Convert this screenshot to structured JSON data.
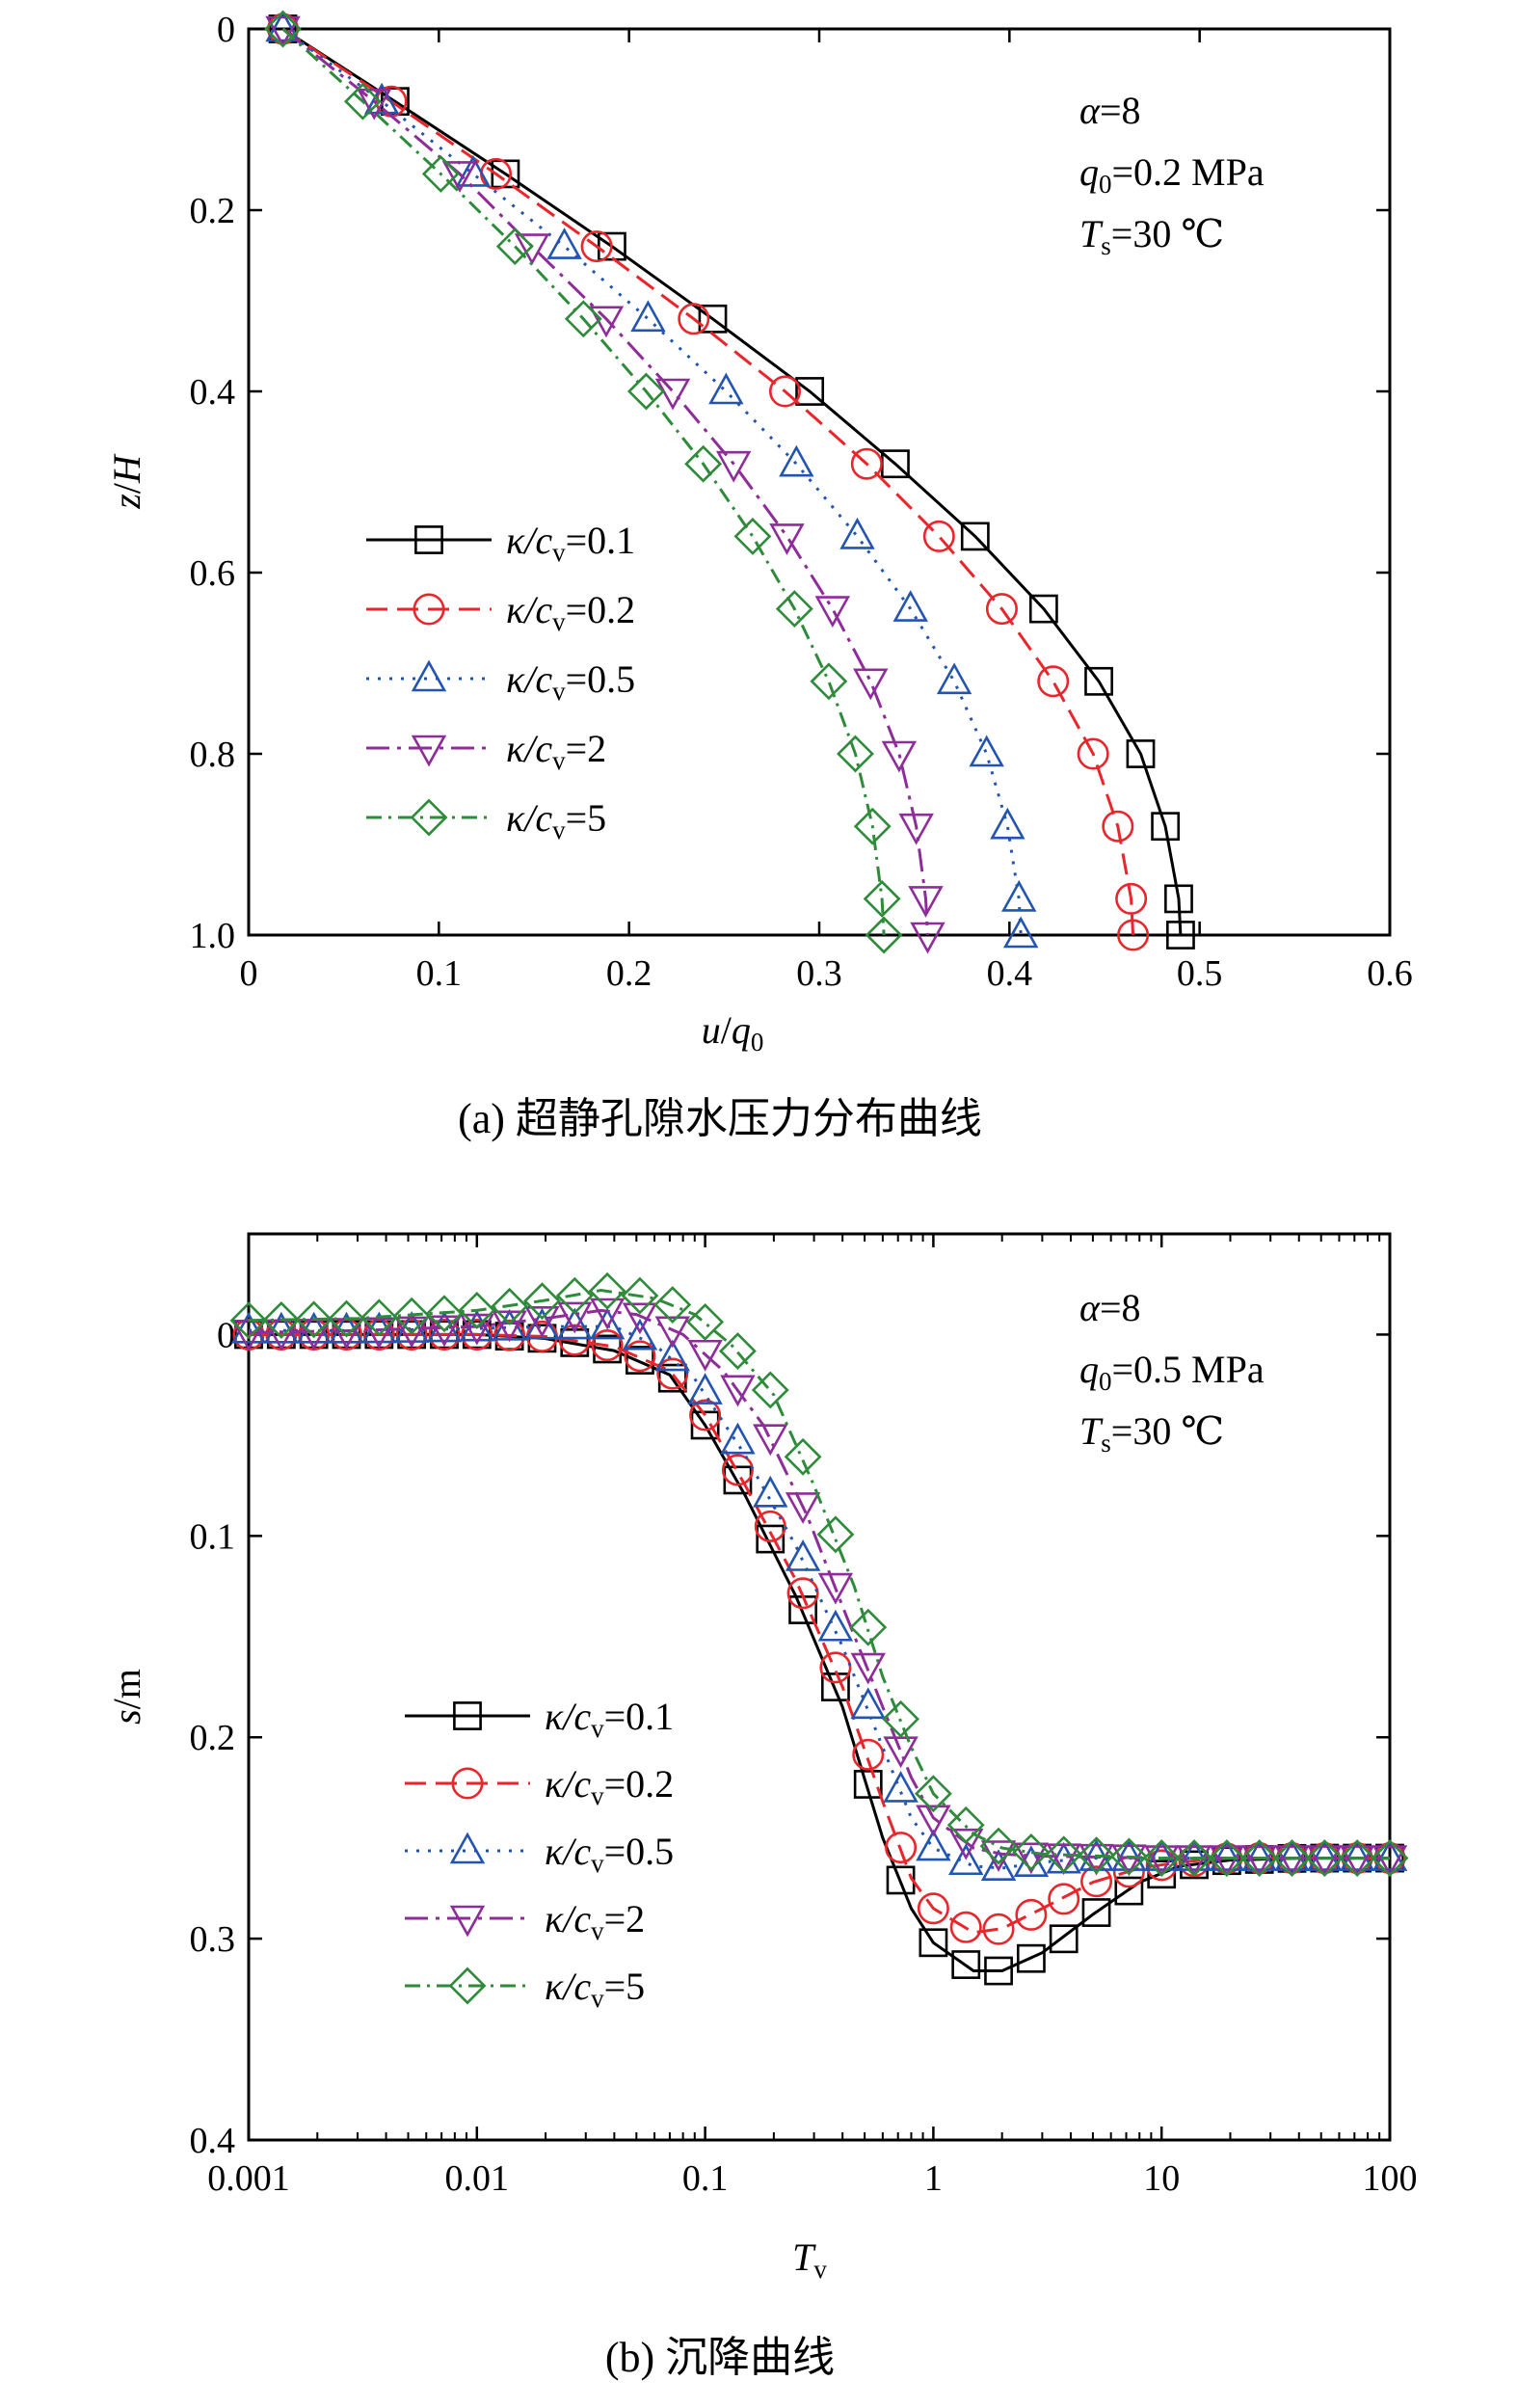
{
  "chart_data": [
    {
      "id": "a",
      "type": "line",
      "caption": "(a) 超静孔隙水压力分布曲线",
      "xlabel": {
        "var": "u",
        "slash": "/",
        "var2": "q",
        "sub2": "0"
      },
      "ylabel": {
        "var": "z",
        "slash": "/",
        "var2": "H"
      },
      "xlim": [
        0,
        0.6
      ],
      "ylim": [
        0,
        1.0
      ],
      "y_inverted": true,
      "x_scale": "linear",
      "x_ticks": [
        "0",
        "0.1",
        "0.2",
        "0.3",
        "0.4",
        "0.5",
        "0.6"
      ],
      "x_tick_values": [
        0,
        0.1,
        0.2,
        0.3,
        0.4,
        0.5,
        0.6
      ],
      "y_ticks": [
        "0",
        "0.2",
        "0.4",
        "0.6",
        "0.8",
        "1.0"
      ],
      "y_tick_values": [
        0,
        0.2,
        0.4,
        0.6,
        0.8,
        1.0
      ],
      "annotation": [
        {
          "var": "α",
          "text": "=8"
        },
        {
          "var": "q",
          "sub": "0",
          "text": "=0.2 MPa"
        },
        {
          "var": "T",
          "sub": "s",
          "text": "=30 ℃"
        }
      ],
      "legend_position": "left-middle",
      "series": [
        {
          "name": "κ/cv=0.1",
          "label_var": "κ/c",
          "label_sub": "v",
          "label_val": "=0.1",
          "color": "#000000",
          "dash": "",
          "marker": "square",
          "points": [
            [
              0.018,
              0
            ],
            [
              0.077,
              0.08
            ],
            [
              0.135,
              0.16
            ],
            [
              0.191,
              0.24
            ],
            [
              0.244,
              0.32
            ],
            [
              0.295,
              0.4
            ],
            [
              0.34,
              0.48
            ],
            [
              0.382,
              0.56
            ],
            [
              0.418,
              0.64
            ],
            [
              0.447,
              0.72
            ],
            [
              0.469,
              0.8
            ],
            [
              0.482,
              0.88
            ],
            [
              0.489,
              0.96
            ],
            [
              0.49,
              1.0
            ]
          ]
        },
        {
          "name": "κ/cv=0.2",
          "label_var": "κ/c",
          "label_sub": "v",
          "label_val": "=0.2",
          "color": "#e8262b",
          "dash": "22,10",
          "marker": "circle",
          "points": [
            [
              0.018,
              0
            ],
            [
              0.075,
              0.08
            ],
            [
              0.13,
              0.16
            ],
            [
              0.183,
              0.24
            ],
            [
              0.234,
              0.32
            ],
            [
              0.282,
              0.4
            ],
            [
              0.325,
              0.48
            ],
            [
              0.363,
              0.56
            ],
            [
              0.396,
              0.64
            ],
            [
              0.423,
              0.72
            ],
            [
              0.444,
              0.8
            ],
            [
              0.457,
              0.88
            ],
            [
              0.464,
              0.96
            ],
            [
              0.465,
              1.0
            ]
          ]
        },
        {
          "name": "κ/cv=0.5",
          "label_var": "κ/c",
          "label_sub": "v",
          "label_val": "=0.5",
          "color": "#2355b0",
          "dash": "3,9",
          "marker": "triangle-up",
          "points": [
            [
              0.018,
              0
            ],
            [
              0.07,
              0.08
            ],
            [
              0.118,
              0.16
            ],
            [
              0.166,
              0.24
            ],
            [
              0.21,
              0.32
            ],
            [
              0.251,
              0.4
            ],
            [
              0.288,
              0.48
            ],
            [
              0.32,
              0.56
            ],
            [
              0.348,
              0.64
            ],
            [
              0.371,
              0.72
            ],
            [
              0.388,
              0.8
            ],
            [
              0.399,
              0.88
            ],
            [
              0.405,
              0.96
            ],
            [
              0.406,
              1.0
            ]
          ]
        },
        {
          "name": "κ/cv=2",
          "label_var": "κ/c",
          "label_sub": "v",
          "label_val": "=2",
          "color": "#8e2c9a",
          "dash": "24,8,4,8",
          "marker": "triangle-down",
          "points": [
            [
              0.018,
              0
            ],
            [
              0.066,
              0.08
            ],
            [
              0.111,
              0.16
            ],
            [
              0.149,
              0.24
            ],
            [
              0.188,
              0.32
            ],
            [
              0.223,
              0.4
            ],
            [
              0.255,
              0.48
            ],
            [
              0.283,
              0.56
            ],
            [
              0.307,
              0.64
            ],
            [
              0.327,
              0.72
            ],
            [
              0.342,
              0.8
            ],
            [
              0.351,
              0.88
            ],
            [
              0.356,
              0.96
            ],
            [
              0.357,
              1.0
            ]
          ]
        },
        {
          "name": "κ/cv=5",
          "label_var": "κ/c",
          "label_sub": "v",
          "label_val": "=5",
          "color": "#2e8b3a",
          "dash": "16,7,3,7",
          "marker": "diamond",
          "points": [
            [
              0.018,
              0
            ],
            [
              0.06,
              0.08
            ],
            [
              0.101,
              0.16
            ],
            [
              0.14,
              0.24
            ],
            [
              0.176,
              0.32
            ],
            [
              0.209,
              0.4
            ],
            [
              0.239,
              0.48
            ],
            [
              0.265,
              0.56
            ],
            [
              0.287,
              0.64
            ],
            [
              0.305,
              0.72
            ],
            [
              0.319,
              0.8
            ],
            [
              0.328,
              0.88
            ],
            [
              0.333,
              0.96
            ],
            [
              0.334,
              1.0
            ]
          ]
        }
      ]
    },
    {
      "id": "b",
      "type": "line",
      "caption": "(b) 沉降曲线",
      "xlabel": {
        "var": "T",
        "sub": "v"
      },
      "ylabel": {
        "var": "s",
        "text": "/m"
      },
      "xlim": [
        0.001,
        100
      ],
      "ylim": [
        -0.05,
        0.4
      ],
      "y_inverted": true,
      "x_scale": "log",
      "x_ticks": [
        "0.001",
        "0.01",
        "0.1",
        "1",
        "10",
        "100"
      ],
      "x_tick_values": [
        0.001,
        0.01,
        0.1,
        1,
        10,
        100
      ],
      "y_ticks": [
        "0",
        "0.1",
        "0.2",
        "0.3",
        "0.4"
      ],
      "y_tick_values": [
        0,
        0.1,
        0.2,
        0.3,
        0.4
      ],
      "annotation": [
        {
          "var": "α",
          "text": "=8"
        },
        {
          "var": "q",
          "sub": "0",
          "text": "=0.5 MPa"
        },
        {
          "var": "T",
          "sub": "s",
          "text": "=30 ℃"
        }
      ],
      "legend_position": "left-bottom",
      "series": [
        {
          "name": "κ/cv=0.1",
          "label_var": "κ/c",
          "label_sub": "v",
          "label_val": "=0.1",
          "color": "#000000",
          "dash": "",
          "marker": "square",
          "points": [
            [
              0.001,
              0
            ],
            [
              0.003,
              0
            ],
            [
              0.01,
              0
            ],
            [
              0.02,
              0.002
            ],
            [
              0.04,
              0.008
            ],
            [
              0.07,
              0.02
            ],
            [
              0.1,
              0.045
            ],
            [
              0.15,
              0.08
            ],
            [
              0.25,
              0.13
            ],
            [
              0.4,
              0.185
            ],
            [
              0.6,
              0.25
            ],
            [
              0.8,
              0.285
            ],
            [
              1.0,
              0.302
            ],
            [
              1.5,
              0.316
            ],
            [
              2.0,
              0.316
            ],
            [
              3.0,
              0.307
            ],
            [
              5.0,
              0.288
            ],
            [
              8.0,
              0.272
            ],
            [
              12,
              0.264
            ],
            [
              20,
              0.261
            ],
            [
              40,
              0.26
            ],
            [
              100,
              0.26
            ]
          ]
        },
        {
          "name": "κ/cv=0.2",
          "label_var": "κ/c",
          "label_sub": "v",
          "label_val": "=0.2",
          "color": "#e8262b",
          "dash": "22,10",
          "marker": "circle",
          "points": [
            [
              0.001,
              0
            ],
            [
              0.003,
              0
            ],
            [
              0.01,
              0
            ],
            [
              0.02,
              0.001
            ],
            [
              0.04,
              0.006
            ],
            [
              0.07,
              0.018
            ],
            [
              0.1,
              0.04
            ],
            [
              0.15,
              0.075
            ],
            [
              0.25,
              0.122
            ],
            [
              0.4,
              0.175
            ],
            [
              0.6,
              0.232
            ],
            [
              0.8,
              0.27
            ],
            [
              1.0,
              0.285
            ],
            [
              1.5,
              0.297
            ],
            [
              2.0,
              0.295
            ],
            [
              3.0,
              0.285
            ],
            [
              5.0,
              0.272
            ],
            [
              8.0,
              0.265
            ],
            [
              12,
              0.262
            ],
            [
              20,
              0.26
            ],
            [
              100,
              0.26
            ]
          ]
        },
        {
          "name": "κ/cv=0.5",
          "label_var": "κ/c",
          "label_sub": "v",
          "label_val": "=0.5",
          "color": "#2355b0",
          "dash": "3,9",
          "marker": "triangle-up",
          "points": [
            [
              0.001,
              -0.002
            ],
            [
              0.003,
              -0.002
            ],
            [
              0.01,
              -0.003
            ],
            [
              0.02,
              -0.004
            ],
            [
              0.04,
              -0.004
            ],
            [
              0.06,
              0.005
            ],
            [
              0.09,
              0.022
            ],
            [
              0.15,
              0.06
            ],
            [
              0.25,
              0.105
            ],
            [
              0.4,
              0.155
            ],
            [
              0.6,
              0.205
            ],
            [
              0.8,
              0.24
            ],
            [
              1.0,
              0.255
            ],
            [
              1.5,
              0.264
            ],
            [
              2.0,
              0.265
            ],
            [
              3.0,
              0.262
            ],
            [
              5.0,
              0.26
            ],
            [
              10,
              0.26
            ],
            [
              100,
              0.26
            ]
          ]
        },
        {
          "name": "κ/cv=2",
          "label_var": "κ/c",
          "label_sub": "v",
          "label_val": "=2",
          "color": "#8e2c9a",
          "dash": "24,8,4,8",
          "marker": "triangle-down",
          "points": [
            [
              0.001,
              -0.001
            ],
            [
              0.003,
              -0.002
            ],
            [
              0.01,
              -0.004
            ],
            [
              0.02,
              -0.008
            ],
            [
              0.035,
              -0.012
            ],
            [
              0.05,
              -0.01
            ],
            [
              0.08,
              0.0
            ],
            [
              0.12,
              0.018
            ],
            [
              0.18,
              0.045
            ],
            [
              0.28,
              0.09
            ],
            [
              0.4,
              0.135
            ],
            [
              0.6,
              0.185
            ],
            [
              0.8,
              0.22
            ],
            [
              1.0,
              0.24
            ],
            [
              1.5,
              0.255
            ],
            [
              2.0,
              0.258
            ],
            [
              3.0,
              0.259
            ],
            [
              10,
              0.26
            ],
            [
              100,
              0.26
            ]
          ]
        },
        {
          "name": "κ/cv=5",
          "label_var": "κ/c",
          "label_sub": "v",
          "label_val": "=5",
          "color": "#2e8b3a",
          "dash": "16,7,3,7",
          "marker": "diamond",
          "points": [
            [
              0.001,
              -0.007
            ],
            [
              0.003,
              -0.008
            ],
            [
              0.01,
              -0.012
            ],
            [
              0.02,
              -0.017
            ],
            [
              0.035,
              -0.022
            ],
            [
              0.06,
              -0.018
            ],
            [
              0.09,
              -0.01
            ],
            [
              0.13,
              0.005
            ],
            [
              0.2,
              0.03
            ],
            [
              0.3,
              0.075
            ],
            [
              0.45,
              0.125
            ],
            [
              0.6,
              0.17
            ],
            [
              0.8,
              0.205
            ],
            [
              1.0,
              0.228
            ],
            [
              1.5,
              0.248
            ],
            [
              2.0,
              0.255
            ],
            [
              3.0,
              0.258
            ],
            [
              10,
              0.26
            ],
            [
              100,
              0.26
            ]
          ]
        }
      ]
    }
  ]
}
